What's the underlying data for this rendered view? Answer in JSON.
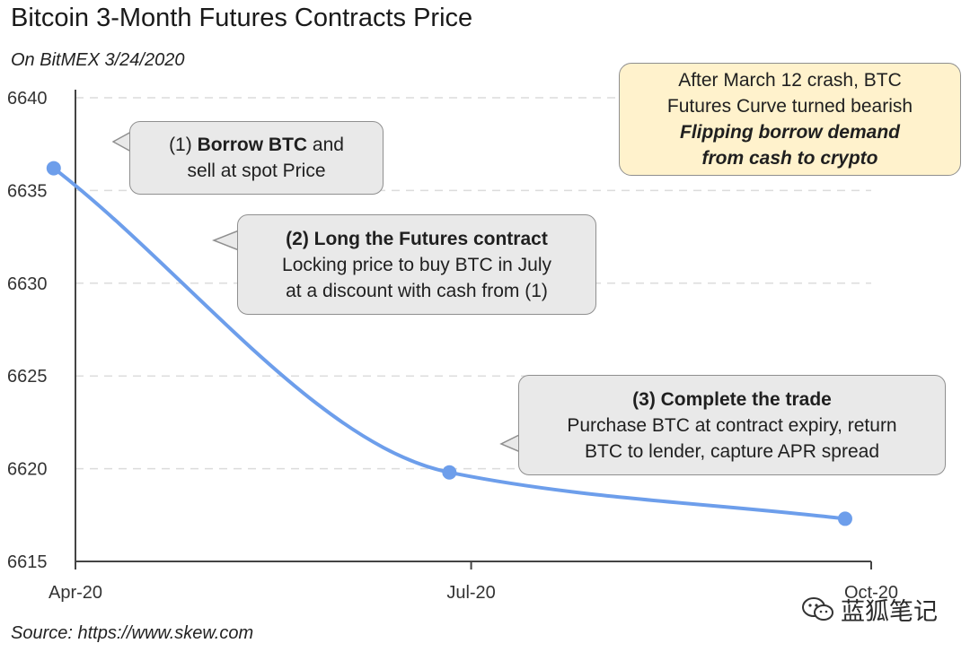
{
  "title": "Bitcoin 3-Month Futures Contracts Price",
  "subtitle": "On BitMEX 3/24/2020",
  "source": "Source: https://www.skew.com",
  "watermark": "蓝狐笔记",
  "chart_data": {
    "type": "line",
    "categories": [
      "Apr-20",
      "Jul-20",
      "Oct-20"
    ],
    "y_ticks": [
      "6615",
      "6620",
      "6625",
      "6630",
      "6635",
      "6640"
    ],
    "ylim": [
      6615,
      6640
    ],
    "series": [
      {
        "points": [
          {
            "x": "2020-03-27",
            "y": 6636.2
          },
          {
            "x": "2020-06-26",
            "y": 6619.8
          },
          {
            "x": "2020-09-25",
            "y": 6617.3
          }
        ],
        "color": "#6d9eeb"
      }
    ],
    "grid": true,
    "annotations": {
      "callout1": {
        "prefix": "(1) ",
        "bold": "Borrow BTC",
        "suffix": " and",
        "line2": "sell at spot Price"
      },
      "callout2": {
        "heading": "(2) Long the Futures contract",
        "line2": "Locking price to buy BTC in July",
        "line3": "at a discount with cash from (1)"
      },
      "callout3": {
        "heading": "(3) Complete the trade",
        "line2": "Purchase BTC at contract expiry, return",
        "line3": "BTC to lender, capture APR spread"
      },
      "note": {
        "line1": "After March 12 crash, BTC",
        "line2": "Futures Curve turned bearish",
        "line3": "Flipping borrow demand",
        "line4": "from cash to crypto"
      }
    }
  }
}
